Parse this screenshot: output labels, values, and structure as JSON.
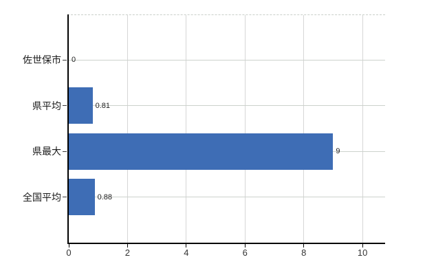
{
  "chart_data": {
    "type": "bar",
    "orientation": "horizontal",
    "title": "",
    "xlabel": "",
    "ylabel": "",
    "categories": [
      "佐世保市",
      "県平均",
      "県最大",
      "全国平均"
    ],
    "values": [
      0,
      0.81,
      9,
      0.88
    ],
    "value_labels": [
      "0",
      "0.81",
      "9",
      "0.88"
    ],
    "xlim": [
      0,
      10.77
    ],
    "xticks": [
      0,
      2,
      4,
      6,
      8,
      10
    ],
    "grid": true,
    "legend": false
  },
  "colors": {
    "bar": "#3e6db5",
    "axis": "#000000",
    "vgrid": "#d6d6d6",
    "hgrid": "#ccd2cc",
    "top_border": "#c9cfc9",
    "category_text": "#1a1a1a",
    "tick_text": "#333333",
    "value_text": "#222222",
    "background": "#ffffff"
  }
}
